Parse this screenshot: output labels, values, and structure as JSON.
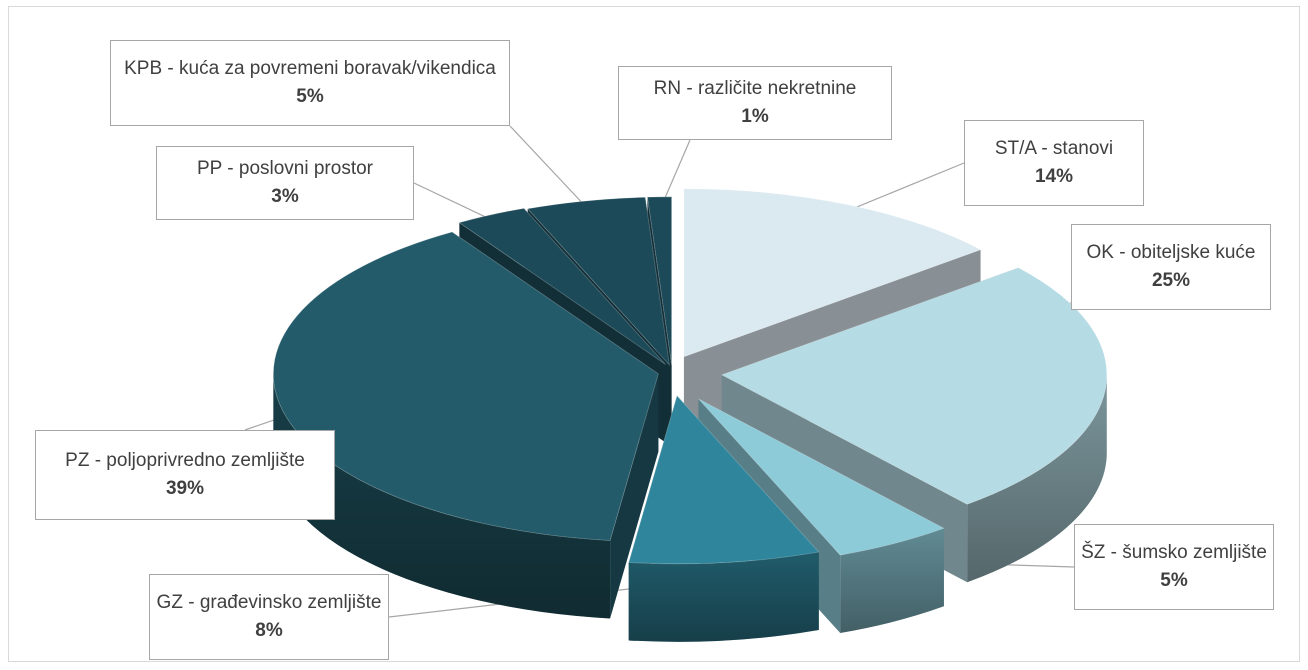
{
  "chart_data": {
    "type": "pie",
    "title": "",
    "style": "3d-exploded",
    "slices": [
      {
        "label": "ST/A - stanovi",
        "value": 14,
        "value_label": "14%",
        "color": "#dbe9f0"
      },
      {
        "label": "OK - obiteljske kuće",
        "value": 25,
        "value_label": "25%",
        "color": "#b5dbe4"
      },
      {
        "label": "ŠZ - šumsko zemljište",
        "value": 5,
        "value_label": "5%",
        "color": "#8ecbd9"
      },
      {
        "label": "GZ - građevinsko zemljište",
        "value": 8,
        "value_label": "8%",
        "color": "#2f869c"
      },
      {
        "label": "PZ - poljoprivredno zemljište",
        "value": 39,
        "value_label": "39%",
        "color": "#235b6a"
      },
      {
        "label": "PP - poslovni prostor",
        "value": 3,
        "value_label": "3%",
        "color": "#1d4a58"
      },
      {
        "label": "KPB - kuća za povremeni boravak/vikendica",
        "value": 5,
        "value_label": "5%",
        "color": "#1d4a58"
      },
      {
        "label": "RN - različite nekretnine",
        "value": 1,
        "value_label": "1%",
        "color": "#1d4a58"
      }
    ]
  }
}
